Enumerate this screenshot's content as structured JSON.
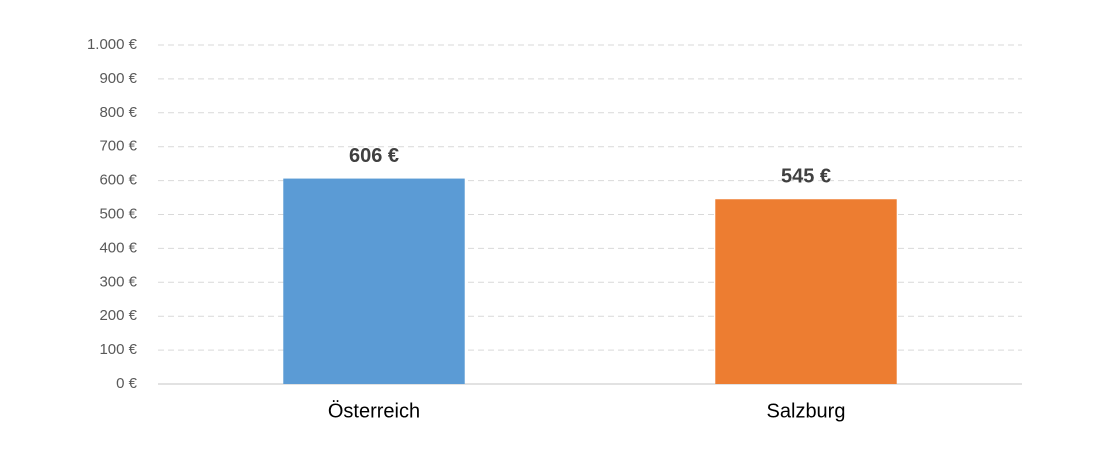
{
  "chart_data": {
    "type": "bar",
    "categories": [
      "Österreich",
      "Salzburg"
    ],
    "values": [
      606,
      545
    ],
    "value_labels": [
      "606 €",
      "545 €"
    ],
    "colors": [
      "#5b9bd5",
      "#ed7d31"
    ],
    "ylim": [
      0,
      1000
    ],
    "yticks": [
      {
        "value": 0,
        "label": "0 €"
      },
      {
        "value": 100,
        "label": "100 €"
      },
      {
        "value": 200,
        "label": "200 €"
      },
      {
        "value": 300,
        "label": "300 €"
      },
      {
        "value": 400,
        "label": "400 €"
      },
      {
        "value": 500,
        "label": "500 €"
      },
      {
        "value": 600,
        "label": "600 €"
      },
      {
        "value": 700,
        "label": "700 €"
      },
      {
        "value": 800,
        "label": "800 €"
      },
      {
        "value": 900,
        "label": "900 €"
      },
      {
        "value": 1000,
        "label": "1.000 €"
      }
    ],
    "grid": true
  }
}
